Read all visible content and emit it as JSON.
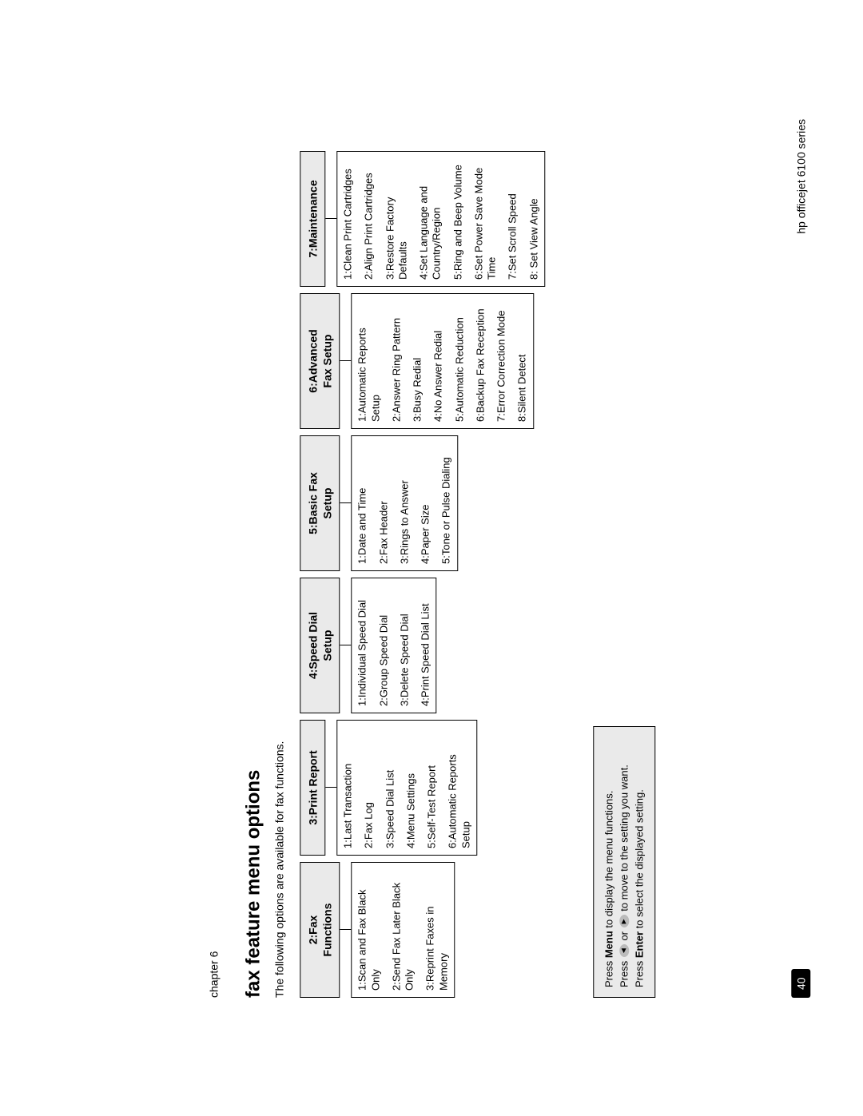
{
  "chapter_label": "chapter 6",
  "title": "fax feature menu options",
  "subtitle": "The following options are available for fax functions.",
  "menus": [
    {
      "header": "2:Fax\nFunctions",
      "items": [
        "1:Scan and Fax Black Only",
        "2:Send Fax Later Black Only",
        "3:Reprint Faxes in Memory"
      ]
    },
    {
      "header": "3:Print Report",
      "items": [
        "1:Last Transaction",
        "2:Fax Log",
        "3:Speed Dial List",
        "4:Menu Settings",
        "5:Self-Test Report",
        "6:Automatic Reports Setup"
      ]
    },
    {
      "header": "4:Speed Dial\nSetup",
      "items": [
        "1:Individual Speed Dial",
        "2:Group Speed Dial",
        "3:Delete Speed Dial",
        "4:Print Speed Dial List"
      ]
    },
    {
      "header": "5:Basic Fax\nSetup",
      "items": [
        "1:Date and Time",
        "2:Fax Header",
        "3:Rings to Answer",
        "4:Paper Size",
        "5:Tone or Pulse Dialing"
      ]
    },
    {
      "header": "6:Advanced\nFax Setup",
      "items": [
        "1:Automatic Reports Setup",
        "2:Answer Ring Pattern",
        "3:Busy Redial",
        "4:No Answer Redial",
        "5:Automatic Reduction",
        "6:Backup Fax Reception",
        "7:Error Correction Mode",
        "8:Silent Detect"
      ]
    },
    {
      "header": "7:Maintenance",
      "items": [
        "1:Clean Print Cartridges",
        "2:Align Print Cartridges",
        "3:Restore Factory Defaults",
        "4:Set Language and Country/Region",
        "5:Ring and Beep Volume",
        "6:Set Power Save Mode Time",
        "7:Set Scroll Speed",
        "8: Set View Angle"
      ]
    }
  ],
  "instructions": {
    "line1_pre": "Press ",
    "line1_bold": "Menu",
    "line1_post": " to display the menu functions.",
    "line2_pre": "Press ",
    "line2_mid": " or ",
    "line2_post": " to move to the setting you want.",
    "line3_pre": "Press ",
    "line3_bold": "Enter",
    "line3_post": " to select the displayed setting."
  },
  "arrow_left": "◄",
  "arrow_right": "►",
  "page_number": "40",
  "product_name": "hp officejet 6100 series",
  "colors": {
    "header_bg": "#eaeaea",
    "border": "#000000",
    "page_bg": "#ffffff",
    "page_num_bg": "#000000",
    "page_num_fg": "#ffffff"
  }
}
